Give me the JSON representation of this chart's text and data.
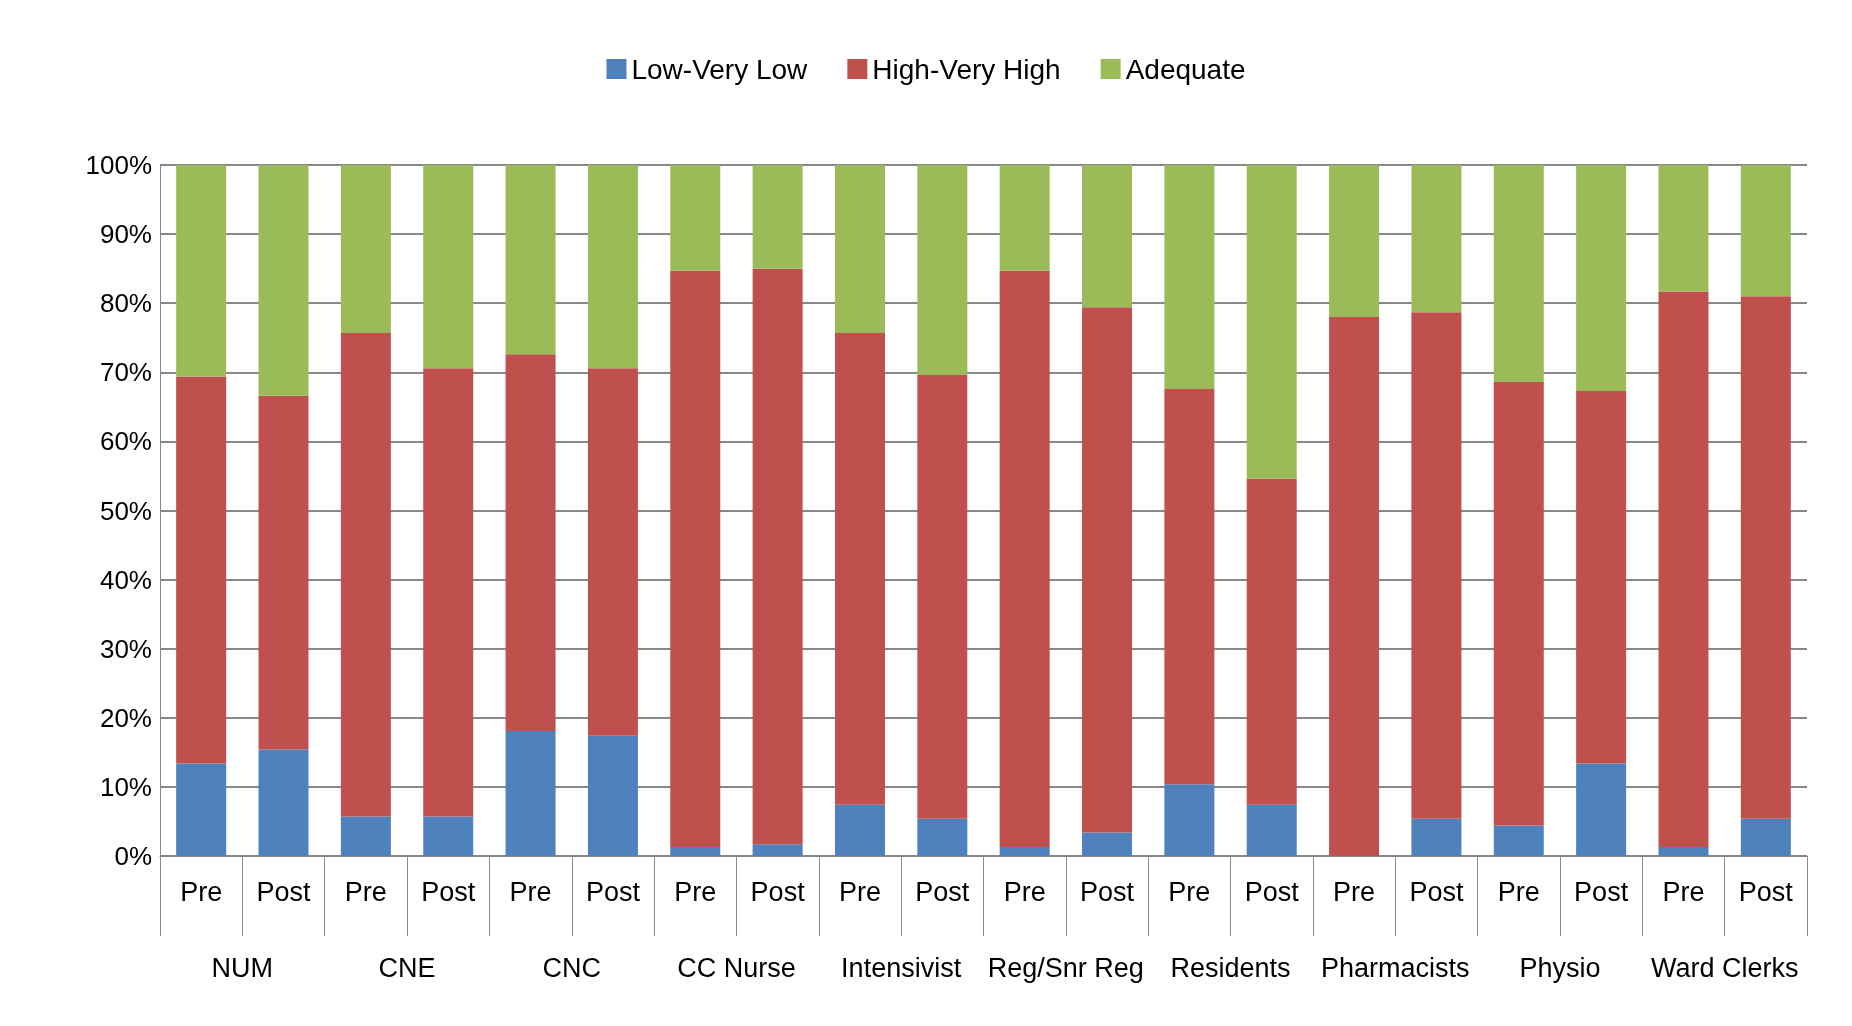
{
  "chart_data": {
    "type": "bar",
    "stacked": true,
    "legend": "top",
    "grid": "y",
    "categories": [
      "Pre",
      "Post",
      "Pre",
      "Post",
      "Pre",
      "Post",
      "Pre",
      "Post",
      "Pre",
      "Post",
      "Pre",
      "Post",
      "Pre",
      "Post",
      "Pre",
      "Post",
      "Pre",
      "Post",
      "Pre",
      "Post"
    ],
    "annotations": [
      "NUM",
      "CNE",
      "CNC",
      "CC Nurse",
      "Intensivist",
      "Reg/Snr Reg",
      "Residents",
      "Pharmacists",
      "Physio",
      "Ward Clerks"
    ],
    "ylim": [
      0,
      100
    ],
    "yticks": [
      {
        "value": 0,
        "label": "0%"
      },
      {
        "value": 10,
        "label": "10%"
      },
      {
        "value": 20,
        "label": "20%"
      },
      {
        "value": 30,
        "label": "30%"
      },
      {
        "value": 40,
        "label": "40%"
      },
      {
        "value": 50,
        "label": "50%"
      },
      {
        "value": 60,
        "label": "60%"
      },
      {
        "value": 70,
        "label": "70%"
      },
      {
        "value": 80,
        "label": "80%"
      },
      {
        "value": 90,
        "label": "90%"
      },
      {
        "value": 100,
        "label": "100%"
      }
    ],
    "series": [
      {
        "name": "Low-Very Low",
        "color": "#4f81bd",
        "values": [
          13.4,
          15.4,
          5.7,
          5.7,
          18.1,
          17.4,
          1.3,
          1.7,
          7.4,
          5.4,
          1.3,
          3.4,
          10.4,
          7.4,
          0,
          5.4,
          4.4,
          13.4,
          1.3,
          5.4
        ]
      },
      {
        "name": "High-Very High",
        "color": "#c0504d",
        "values": [
          56.0,
          51.2,
          70.0,
          64.9,
          54.5,
          53.2,
          83.4,
          83.3,
          68.3,
          64.2,
          83.4,
          76.0,
          57.2,
          47.2,
          78.0,
          73.3,
          64.2,
          53.9,
          80.4,
          75.6
        ]
      },
      {
        "name": "Adequate",
        "color": "#9bbb59",
        "values": [
          30.6,
          33.4,
          24.3,
          29.4,
          27.4,
          29.4,
          15.3,
          15.0,
          24.3,
          30.4,
          15.3,
          20.6,
          32.4,
          45.4,
          22.0,
          21.3,
          31.4,
          32.7,
          18.3,
          19.0
        ]
      }
    ]
  }
}
